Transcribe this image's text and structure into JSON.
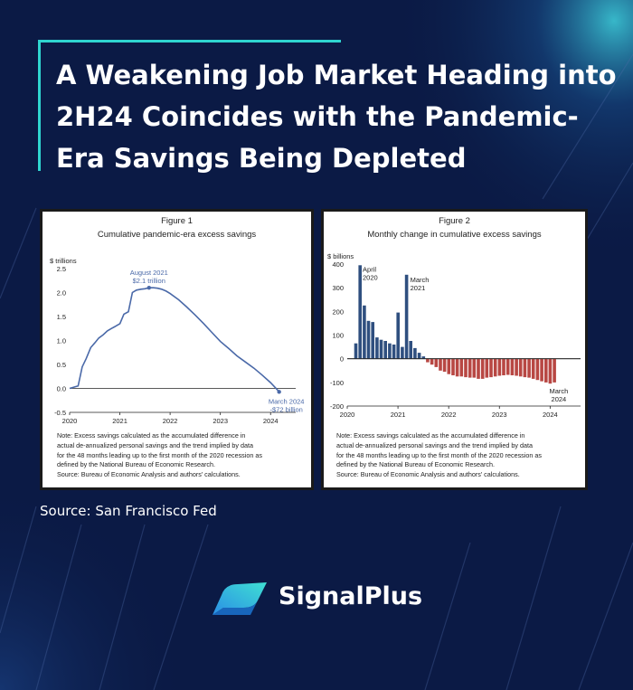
{
  "headline": [
    "A Weakening Job Market Heading into",
    "2H24 Coincides with the Pandemic-",
    "Era Savings Being Depleted"
  ],
  "source": "Source: San Francisco Fed",
  "brand": "SignalPlus",
  "colors": {
    "background": "#0b1a45",
    "accent": "#2fd5d0",
    "line": "#4a69a8",
    "bar_positive": "#2f4f7f",
    "bar_negative": "#b84743"
  },
  "chart_data": [
    {
      "type": "line",
      "figure_label": "Figure 1",
      "title": "Cumulative pandemic-era excess savings",
      "ylabel": "$ trillions",
      "ylim": [
        -0.5,
        2.5
      ],
      "yticks": [
        "2.5",
        "2.0",
        "1.5",
        "1.0",
        "0.5",
        "0.0",
        "-0.5"
      ],
      "xlim": [
        2020,
        2024.5
      ],
      "xticks": [
        "2020",
        "2021",
        "2022",
        "2023",
        "2024"
      ],
      "x": [
        2020.0,
        2020.17,
        2020.25,
        2020.33,
        2020.42,
        2020.5,
        2020.58,
        2020.67,
        2020.75,
        2020.83,
        2020.92,
        2021.0,
        2021.08,
        2021.17,
        2021.25,
        2021.33,
        2021.42,
        2021.5,
        2021.58,
        2021.67,
        2021.75,
        2021.83,
        2021.92,
        2022.0,
        2022.17,
        2022.33,
        2022.5,
        2022.67,
        2022.83,
        2023.0,
        2023.17,
        2023.33,
        2023.5,
        2023.67,
        2023.83,
        2024.0,
        2024.17
      ],
      "y": [
        0.0,
        0.05,
        0.45,
        0.62,
        0.85,
        0.95,
        1.05,
        1.12,
        1.2,
        1.25,
        1.3,
        1.35,
        1.55,
        1.6,
        2.0,
        2.05,
        2.07,
        2.08,
        2.1,
        2.1,
        2.09,
        2.07,
        2.03,
        1.98,
        1.85,
        1.7,
        1.53,
        1.35,
        1.17,
        0.98,
        0.83,
        0.68,
        0.55,
        0.42,
        0.28,
        0.12,
        -0.07
      ],
      "annotations": [
        {
          "line1": "August 2021",
          "line2": "$2.1 trillion",
          "x": 2021.58,
          "y": 2.1
        },
        {
          "line1": "March 2024",
          "line2": "-$72 billion",
          "x": 2024.17,
          "y": -0.072
        }
      ],
      "note": [
        "Note: Excess savings calculated as the accumulated difference in",
        "actual de-annualized personal savings and the trend implied by data",
        "for the 48 months leading up to the first month of the 2020 recession as",
        "defined by the National Bureau of Economic Research.",
        "Source: Bureau of Economic Analysis and authors' calculations."
      ]
    },
    {
      "type": "bar",
      "figure_label": "Figure 2",
      "title": "Monthly change in cumulative excess savings",
      "ylabel": "$ billions",
      "ylim": [
        -200,
        400
      ],
      "yticks": [
        "400",
        "300",
        "200",
        "100",
        "0",
        "-100",
        "-200"
      ],
      "xlim": [
        2020,
        2024.6
      ],
      "xticks": [
        "2020",
        "2021",
        "2022",
        "2023",
        "2024"
      ],
      "start": 2020.17,
      "step": 0.0833,
      "values": [
        65,
        395,
        225,
        160,
        155,
        90,
        80,
        75,
        65,
        60,
        195,
        50,
        355,
        75,
        45,
        25,
        10,
        -15,
        -25,
        -35,
        -50,
        -55,
        -65,
        -70,
        -75,
        -75,
        -78,
        -80,
        -80,
        -85,
        -85,
        -80,
        -78,
        -75,
        -72,
        -70,
        -68,
        -70,
        -72,
        -75,
        -78,
        -80,
        -85,
        -90,
        -95,
        -100,
        -105,
        -100
      ],
      "annotations": [
        {
          "line1": "April",
          "line2": "2020",
          "x": 2020.25,
          "y": 395
        },
        {
          "line1": "March",
          "line2": "2021",
          "x": 2021.17,
          "y": 355
        },
        {
          "line1": "March",
          "line2": "2024",
          "x": 2024.17,
          "y": -100
        }
      ],
      "note": [
        "Note: Excess savings calculated as the accumulated difference in",
        "actual de-annualized personal savings and the trend implied by data",
        "for the 48 months leading up to the first month of the 2020 recession as",
        "defined by the National Bureau of Economic Research.",
        "Source: Bureau of Economic Analysis and authors' calculations."
      ]
    }
  ]
}
